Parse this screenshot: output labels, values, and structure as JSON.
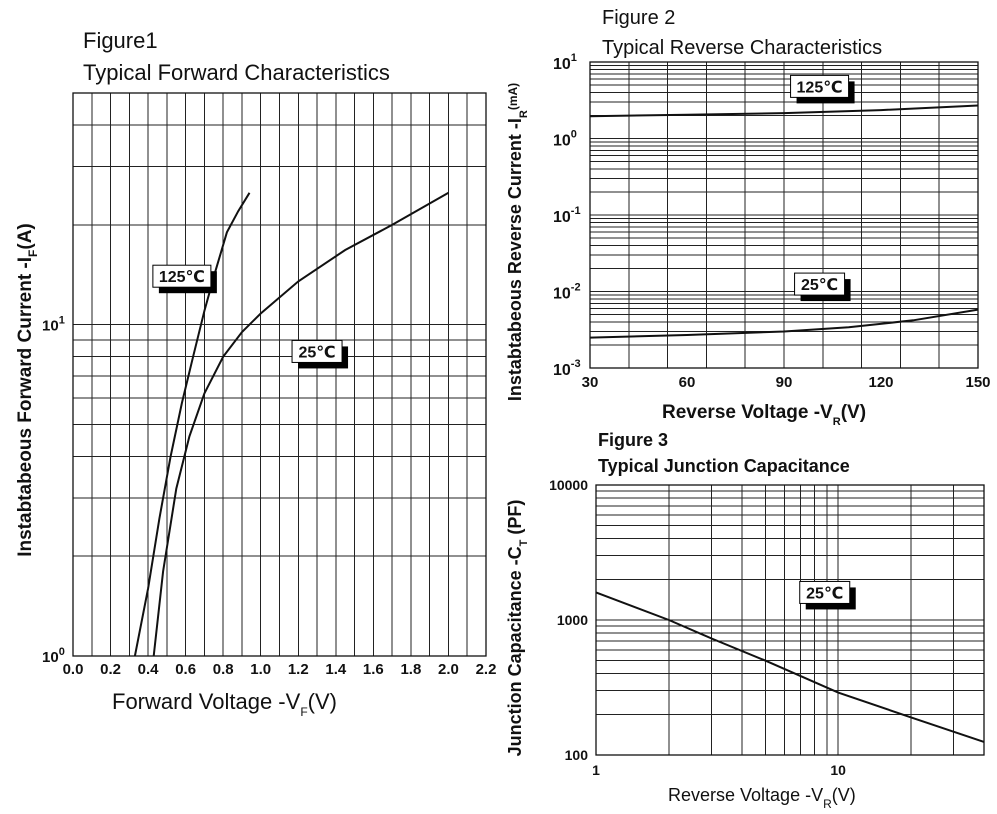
{
  "chart_data": [
    {
      "id": "fig1",
      "type": "line",
      "figure_label": "Figure1",
      "title": "Typical Forward Characteristics",
      "xlabel": "Forward Voltage -V",
      "xlabel_sub": "F",
      "xlabel_tail": "(V)",
      "ylabel": "Instabtabeous Forward Current -I",
      "ylabel_sub": "F",
      "ylabel_tail": "(A)",
      "x_scale": "linear",
      "y_scale": "log",
      "xlim": [
        0,
        2.2
      ],
      "ylim": [
        1,
        50
      ],
      "x_ticks": [
        "0.0",
        "0.2",
        "0.4",
        "0.6",
        "0.8",
        "1.0",
        "1.2",
        "1.4",
        "1.6",
        "1.8",
        "2.0",
        "2.2"
      ],
      "y_tick_labels": [
        {
          "value": 1,
          "base": "10",
          "exp": "0"
        },
        {
          "value": 10,
          "base": "10",
          "exp": "1"
        }
      ],
      "series": [
        {
          "name": "125℃",
          "x": [
            0.33,
            0.4,
            0.46,
            0.52,
            0.58,
            0.64,
            0.7,
            0.76,
            0.82,
            0.88,
            0.94
          ],
          "y": [
            1.0,
            1.6,
            2.6,
            4.0,
            5.8,
            8.0,
            11.0,
            14.6,
            19.0,
            22.0,
            25.0
          ]
        },
        {
          "name": "25℃",
          "x": [
            0.43,
            0.48,
            0.55,
            0.62,
            0.7,
            0.8,
            0.9,
            1.0,
            1.2,
            1.45,
            1.7,
            2.0
          ],
          "y": [
            1.0,
            1.8,
            3.2,
            4.6,
            6.2,
            8.0,
            9.5,
            10.8,
            13.5,
            16.8,
            20.0,
            25.0
          ]
        }
      ],
      "labels": [
        {
          "series": "125℃",
          "x": 0.58,
          "y": 14
        },
        {
          "series": "25℃",
          "x": 1.3,
          "y": 8.3
        }
      ]
    },
    {
      "id": "fig2",
      "type": "line",
      "figure_label": "Figure 2",
      "title": "Typical Reverse Characteristics",
      "xlabel": "Reverse  Voltage -V",
      "xlabel_sub": "R",
      "xlabel_tail": "(V)",
      "ylabel": "Instabtabeous Reverse Current -I",
      "ylabel_sub": "R",
      "ylabel_tail": "(mA)",
      "x_scale": "linear",
      "y_scale": "log",
      "xlim": [
        30,
        150
      ],
      "ylim": [
        0.001,
        10
      ],
      "x_ticks": [
        "30",
        "60",
        "90",
        "120",
        "150"
      ],
      "y_tick_labels": [
        {
          "value": 10,
          "base": "10",
          "exp": "1"
        },
        {
          "value": 1,
          "base": "10",
          "exp": "0"
        },
        {
          "value": 0.1,
          "base": "10",
          "exp": "-1"
        },
        {
          "value": 0.01,
          "base": "10",
          "exp": "-2"
        },
        {
          "value": 0.001,
          "base": "10",
          "exp": "-3"
        }
      ],
      "series": [
        {
          "name": "125℃",
          "x": [
            30,
            60,
            90,
            120,
            150
          ],
          "y": [
            1.95,
            2.05,
            2.15,
            2.35,
            2.7
          ]
        },
        {
          "name": "25℃",
          "x": [
            30,
            60,
            90,
            110,
            130,
            150
          ],
          "y": [
            0.0025,
            0.0027,
            0.003,
            0.0034,
            0.0042,
            0.0058
          ]
        }
      ],
      "labels": [
        {
          "series": "125℃",
          "x": 101,
          "y": 4.8
        },
        {
          "series": "25℃",
          "x": 101,
          "y": 0.0125
        }
      ]
    },
    {
      "id": "fig3",
      "type": "line",
      "figure_label": "Figure 3",
      "title": "Typical Junction Capacitance",
      "xlabel": "Reverse Voltage -V",
      "xlabel_sub": "R",
      "xlabel_tail": "(V)",
      "ylabel": "Junction Capacitance -C",
      "ylabel_sub": "T",
      "ylabel_tail": " (PF)",
      "x_scale": "log",
      "y_scale": "log",
      "xlim": [
        1,
        40
      ],
      "ylim": [
        100,
        10000
      ],
      "x_ticks": [
        "1",
        "10"
      ],
      "y_ticks": [
        "10000",
        "1000",
        "100"
      ],
      "series": [
        {
          "name": "25℃",
          "x": [
            1,
            2,
            3,
            5,
            10,
            20,
            40
          ],
          "y": [
            1600,
            1000,
            730,
            500,
            290,
            190,
            125
          ]
        }
      ],
      "labels": [
        {
          "series": "25℃",
          "x": 8.8,
          "y": 1600
        }
      ]
    }
  ]
}
